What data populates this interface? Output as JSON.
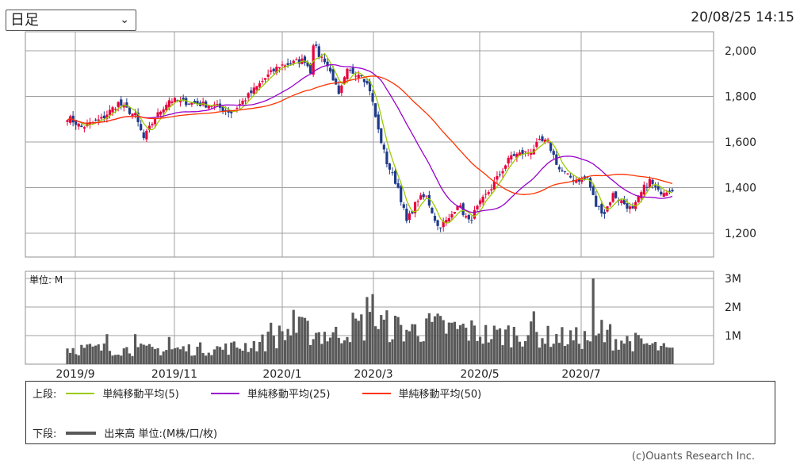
{
  "header": {
    "period_selected": "日足",
    "timestamp": "20/08/25 14:15"
  },
  "volume_unit_label": "単位: M",
  "legend": {
    "upper_label": "上段:",
    "lower_label": "下段:",
    "ma5": "単純移動平均(5)",
    "ma25": "単純移動平均(25)",
    "ma50": "単純移動平均(50)",
    "volume": "出来高 単位:(M株/口/枚)"
  },
  "copyright": "(c)Ouants Research Inc.",
  "colors": {
    "up": "#e8003d",
    "down": "#1f3a8a",
    "ma5": "#99cc00",
    "ma25": "#9900cc",
    "ma50": "#ff3300",
    "volume": "#595959",
    "grid": "#a0a0a0",
    "frame": "#909090"
  },
  "chart_data": [
    {
      "type": "candlestick",
      "title": "",
      "y_ticks": [
        "2,000",
        "1,800",
        "1,600",
        "1,400",
        "1,200"
      ],
      "ylim": [
        1130,
        2060
      ],
      "x_ticks": [
        "2019/9",
        "2019/11",
        "2020/1",
        "2020/3",
        "2020/5",
        "2020/7"
      ],
      "grid": true,
      "anchors": [
        [
          0,
          1710
        ],
        [
          5,
          1665
        ],
        [
          12,
          1700
        ],
        [
          18,
          1770
        ],
        [
          24,
          1715
        ],
        [
          27,
          1615
        ],
        [
          31,
          1705
        ],
        [
          36,
          1785
        ],
        [
          44,
          1770
        ],
        [
          52,
          1760
        ],
        [
          58,
          1730
        ],
        [
          63,
          1790
        ],
        [
          70,
          1880
        ],
        [
          75,
          1935
        ],
        [
          79,
          1945
        ],
        [
          84,
          1960
        ],
        [
          86,
          1910
        ],
        [
          87,
          2035
        ],
        [
          89,
          1980
        ],
        [
          91,
          1960
        ],
        [
          94,
          1880
        ],
        [
          96,
          1800
        ],
        [
          99,
          1910
        ],
        [
          104,
          1900
        ],
        [
          107,
          1830
        ],
        [
          110,
          1650
        ],
        [
          113,
          1510
        ],
        [
          117,
          1400
        ],
        [
          120,
          1250
        ],
        [
          124,
          1350
        ],
        [
          127,
          1360
        ],
        [
          131,
          1230
        ],
        [
          135,
          1260
        ],
        [
          138,
          1330
        ],
        [
          142,
          1250
        ],
        [
          146,
          1330
        ],
        [
          150,
          1400
        ],
        [
          153,
          1460
        ],
        [
          157,
          1540
        ],
        [
          161,
          1550
        ],
        [
          164,
          1560
        ],
        [
          167,
          1600
        ],
        [
          170,
          1600
        ],
        [
          174,
          1480
        ],
        [
          177,
          1450
        ],
        [
          180,
          1435
        ],
        [
          184,
          1440
        ],
        [
          187,
          1320
        ],
        [
          190,
          1290
        ],
        [
          193,
          1370
        ],
        [
          197,
          1330
        ],
        [
          200,
          1300
        ],
        [
          204,
          1400
        ],
        [
          206,
          1430
        ],
        [
          209,
          1380
        ],
        [
          212,
          1390
        ],
        [
          214,
          1395
        ]
      ],
      "moving_averages": [
        {
          "name": "単純移動平均(5)",
          "period": 5
        },
        {
          "name": "単純移動平均(25)",
          "period": 25
        },
        {
          "name": "単純移動平均(50)",
          "period": 50
        }
      ]
    },
    {
      "type": "bar",
      "title": "",
      "y_ticks": [
        "3M",
        "2M",
        "1M"
      ],
      "ylim": [
        0,
        3.0
      ],
      "unit": "M",
      "volume_anchors": [
        [
          0,
          0.55
        ],
        [
          30,
          0.5
        ],
        [
          56,
          0.55
        ],
        [
          69,
          0.75
        ],
        [
          80,
          1.2
        ],
        [
          95,
          1.0
        ],
        [
          100,
          1.3
        ],
        [
          110,
          1.4
        ],
        [
          120,
          1.2
        ],
        [
          130,
          1.3
        ],
        [
          140,
          1.2
        ],
        [
          150,
          1.0
        ],
        [
          160,
          1.1
        ],
        [
          170,
          0.95
        ],
        [
          180,
          0.9
        ],
        [
          190,
          0.9
        ],
        [
          200,
          0.8
        ],
        [
          214,
          0.45
        ]
      ],
      "volume_spikes": [
        [
          14,
          1.05
        ],
        [
          24,
          1.05
        ],
        [
          36,
          0.95
        ],
        [
          72,
          1.45
        ],
        [
          80,
          1.9
        ],
        [
          83,
          1.65
        ],
        [
          106,
          2.35
        ],
        [
          108,
          2.45
        ],
        [
          122,
          1.4
        ],
        [
          127,
          1.6
        ],
        [
          136,
          1.45
        ],
        [
          165,
          1.85
        ],
        [
          186,
          3.0
        ],
        [
          189,
          1.55
        ],
        [
          192,
          1.4
        ]
      ]
    }
  ]
}
